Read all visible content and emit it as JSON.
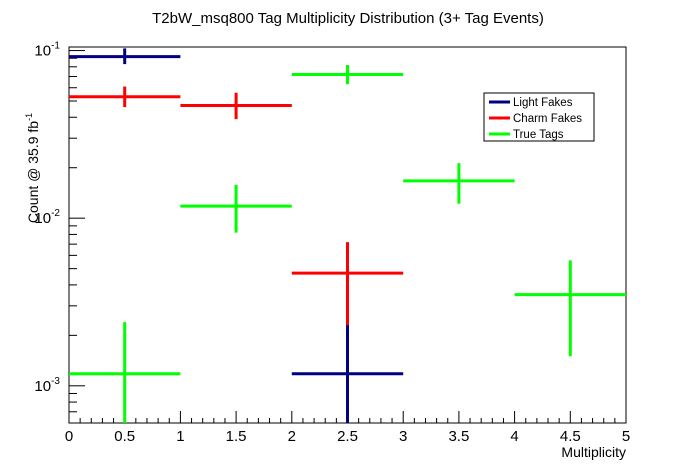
{
  "chart_data": {
    "type": "scatter",
    "title": "T2bW_msq800 Tag Multiplicity Distribution (3+ Tag Events)",
    "xlabel": "Multiplicity",
    "ylabel": "Count @ 35.9 fb",
    "ylabel_sup": "-1",
    "xlim": [
      0,
      5
    ],
    "ylim": [
      0.0006,
      0.105
    ],
    "y_scale": "log",
    "x_ticks": [
      "0",
      "0.5",
      "1",
      "1.5",
      "2",
      "2.5",
      "3",
      "3.5",
      "4",
      "4.5",
      "5"
    ],
    "y_ticks": [
      {
        "value": 0.1,
        "base": "10",
        "exp": "-1"
      },
      {
        "value": 0.01,
        "base": "10",
        "exp": "-2"
      },
      {
        "value": 0.001,
        "base": "10",
        "exp": "-3"
      }
    ],
    "grid": false,
    "legend_position": "top-right",
    "series": [
      {
        "name": "Light Fakes",
        "color": "#000080",
        "points": [
          {
            "x": 0.5,
            "xerr": 0.5,
            "y": 0.092,
            "ylow": 0.083,
            "yhigh": 0.103
          },
          {
            "x": 2.5,
            "xerr": 0.5,
            "y": 0.00118,
            "ylow": 0.0006,
            "yhigh": 0.00235
          }
        ]
      },
      {
        "name": "Charm Fakes",
        "color": "#ff0000",
        "points": [
          {
            "x": 0.5,
            "xerr": 0.5,
            "y": 0.053,
            "ylow": 0.046,
            "yhigh": 0.061
          },
          {
            "x": 1.5,
            "xerr": 0.5,
            "y": 0.047,
            "ylow": 0.039,
            "yhigh": 0.056
          },
          {
            "x": 2.5,
            "xerr": 0.5,
            "y": 0.0047,
            "ylow": 0.0023,
            "yhigh": 0.0072
          }
        ]
      },
      {
        "name": "True Tags",
        "color": "#00ff00",
        "points": [
          {
            "x": 0.5,
            "xerr": 0.5,
            "y": 0.00118,
            "ylow": 0.0006,
            "yhigh": 0.0024
          },
          {
            "x": 1.5,
            "xerr": 0.5,
            "y": 0.0118,
            "ylow": 0.0082,
            "yhigh": 0.0158
          },
          {
            "x": 2.5,
            "xerr": 0.5,
            "y": 0.072,
            "ylow": 0.063,
            "yhigh": 0.082
          },
          {
            "x": 3.5,
            "xerr": 0.5,
            "y": 0.0167,
            "ylow": 0.0122,
            "yhigh": 0.0213
          },
          {
            "x": 4.5,
            "xerr": 0.5,
            "y": 0.0035,
            "ylow": 0.0015,
            "yhigh": 0.0056
          }
        ]
      }
    ]
  }
}
